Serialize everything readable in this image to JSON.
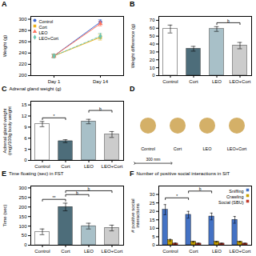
{
  "chart_data": [
    {
      "type": "line",
      "panel_label": "A",
      "ylabel": "Weight (g)",
      "categories": [
        "Day 1",
        "Day 14"
      ],
      "series": [
        {
          "name": "Control",
          "values": [
            235,
            295
          ],
          "errors": [
            3,
            4
          ],
          "marker": "circle",
          "line_style": "solid"
        },
        {
          "name": "Cort",
          "values": [
            235,
            268
          ],
          "errors": [
            3,
            5
          ],
          "marker": "square",
          "line_style": "solid"
        },
        {
          "name": "LEO",
          "values": [
            235,
            292
          ],
          "errors": [
            3,
            4
          ],
          "marker": "triangle",
          "line_style": "solid"
        },
        {
          "name": "LEO+Cort",
          "values": [
            235,
            270
          ],
          "errors": [
            3,
            5
          ],
          "marker": "diamond",
          "line_style": "dashed"
        }
      ],
      "ylim": [
        200,
        305
      ],
      "yticks": [
        200,
        220,
        240,
        260,
        280,
        300
      ],
      "legend": "upper left"
    },
    {
      "type": "bar",
      "panel_label": "B",
      "ylabel": "Weight difference (g)",
      "categories": [
        "Control",
        "Cort",
        "LEO",
        "LEO+Cort"
      ],
      "values": [
        59,
        34,
        59,
        38
      ],
      "errors": [
        5,
        3,
        3,
        4
      ],
      "colors": [
        "#ffffff",
        "#4d6d7a",
        "#a8c0c8",
        "#cccccc"
      ],
      "ylim": [
        0,
        75
      ],
      "yticks": [
        0,
        10,
        20,
        30,
        40,
        50,
        60,
        70
      ],
      "annotations": [
        {
          "text": "b",
          "from": "LEO",
          "to": "LEO+Cort",
          "y": 67
        }
      ]
    },
    {
      "type": "bar",
      "panel_label": "C",
      "title": "Adrenal gland weight (g)",
      "ylabel": "Adrenal gland weight\n(mg)/100g body weight",
      "categories": [
        "Control",
        "Cort",
        "LEO",
        "LEO+Cort"
      ],
      "values": [
        9.8,
        5.2,
        10.5,
        7.0
      ],
      "errors": [
        0.7,
        0.4,
        0.6,
        0.8
      ],
      "colors": [
        "#ffffff",
        "#4d6d7a",
        "#a8c0c8",
        "#cccccc"
      ],
      "ylim": [
        0,
        16
      ],
      "yticks": [
        0,
        3,
        6,
        9,
        12,
        15
      ],
      "annotations": [
        {
          "text": "*",
          "from": "Control",
          "to": "Cort",
          "y": 11.5
        },
        {
          "text": "b",
          "from": "LEO",
          "to": "LEO+Cort",
          "y": 13.5
        }
      ]
    },
    {
      "type": "diagram",
      "panel_label": "D",
      "categories": [
        "Control",
        "Cort",
        "LEO",
        "LEO+Cort"
      ],
      "color": "#d4b068",
      "annotations": [
        {
          "text": "300 mm"
        }
      ],
      "tick_labels": false
    },
    {
      "type": "bar",
      "panel_label": "E",
      "title": "Time floating (sec) in FST",
      "ylabel": "Time (sec)",
      "categories": [
        "Control",
        "Cort",
        "LEO",
        "LEO+Cort"
      ],
      "values": [
        70,
        200,
        100,
        90
      ],
      "errors": [
        15,
        20,
        15,
        15
      ],
      "colors": [
        "#ffffff",
        "#4d6d7a",
        "#a8c0c8",
        "#cccccc"
      ],
      "ylim": [
        0,
        310
      ],
      "yticks": [
        0,
        50,
        100,
        150,
        200,
        250,
        300
      ],
      "annotations": [
        {
          "text": "**",
          "from": "Control",
          "to": "Cort",
          "y": 240
        },
        {
          "text": "b",
          "from": "Cort",
          "to": "LEO",
          "y": 265
        },
        {
          "text": "b",
          "from": "Cort",
          "to": "LEO+Cort",
          "y": 285
        }
      ]
    },
    {
      "type": "bar",
      "panel_label": "F",
      "title": "Number of positive social interactions in SIT",
      "ylabel": "# positive social\ninteractions",
      "categories": [
        "Control",
        "Cort",
        "LEO",
        "LEO+Cort"
      ],
      "series": [
        {
          "name": "Sniffing",
          "values": [
            21,
            18,
            17,
            15
          ],
          "errors": [
            3,
            2,
            2,
            2
          ],
          "color": "#4472c4"
        },
        {
          "name": "Crawling",
          "values": [
            3,
            2,
            2,
            2
          ],
          "errors": [
            0.5,
            0.3,
            0.3,
            0.3
          ],
          "color": "#c8a000"
        },
        {
          "name": "Social (SBU)",
          "values": [
            1,
            1,
            1,
            1
          ],
          "errors": [
            0.3,
            0.2,
            0.2,
            0.2
          ],
          "color": "#c0392b"
        }
      ],
      "ylim": [
        0,
        35
      ],
      "yticks": [
        0,
        5,
        10,
        15,
        20,
        25,
        30
      ],
      "legend": "upper right",
      "annotations": [
        {
          "text": "*",
          "from": "Control",
          "to": "Cort",
          "y": 28,
          "series": "Sniffing"
        },
        {
          "text": "b",
          "from": "Cort",
          "to": "LEO",
          "y": 32,
          "series": "Sniffing"
        }
      ]
    }
  ]
}
